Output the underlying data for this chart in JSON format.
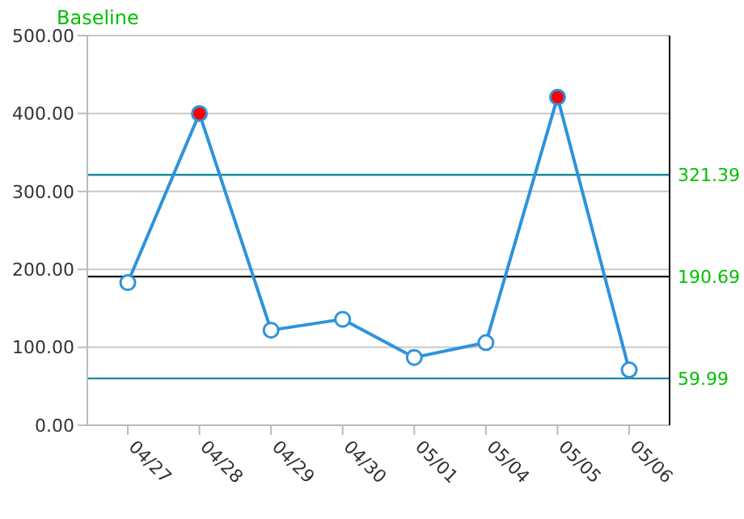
{
  "chart_data": {
    "type": "line",
    "title": "Baseline",
    "categories": [
      "04/27",
      "04/28",
      "04/29",
      "04/30",
      "05/01",
      "05/04",
      "05/05",
      "05/06"
    ],
    "series": [
      {
        "color": "#2e93dc",
        "values": [
          183,
          400,
          122,
          136,
          87,
          106,
          421,
          71
        ],
        "colors": [
          "#2e93dc",
          "#ff0000",
          "#2e93dc",
          "#2e93dc",
          "#2e93dc",
          "#2e93dc",
          "#ff0000",
          "#2e93dc"
        ]
      }
    ],
    "ylim": [
      0,
      500
    ],
    "yticks": [
      {
        "value": 0,
        "label": "0.00"
      },
      {
        "value": 100,
        "label": "100.00"
      },
      {
        "value": 200,
        "label": "200.00"
      },
      {
        "value": 300,
        "label": "300.00"
      },
      {
        "value": 400,
        "label": "400.00"
      },
      {
        "value": 500,
        "label": "500.00"
      }
    ],
    "ref_lines": [
      {
        "axis": "y",
        "value": 321.39,
        "label": "321.39",
        "color": "#1a8a9a"
      },
      {
        "axis": "y",
        "value": 190.69,
        "label": "190.69",
        "color": "#000000"
      },
      {
        "axis": "y",
        "value": 59.99,
        "label": "59.99",
        "color": "#1a8a9a"
      }
    ],
    "grid": "y",
    "marker": "circle",
    "line_style": "solid",
    "legend": false
  }
}
